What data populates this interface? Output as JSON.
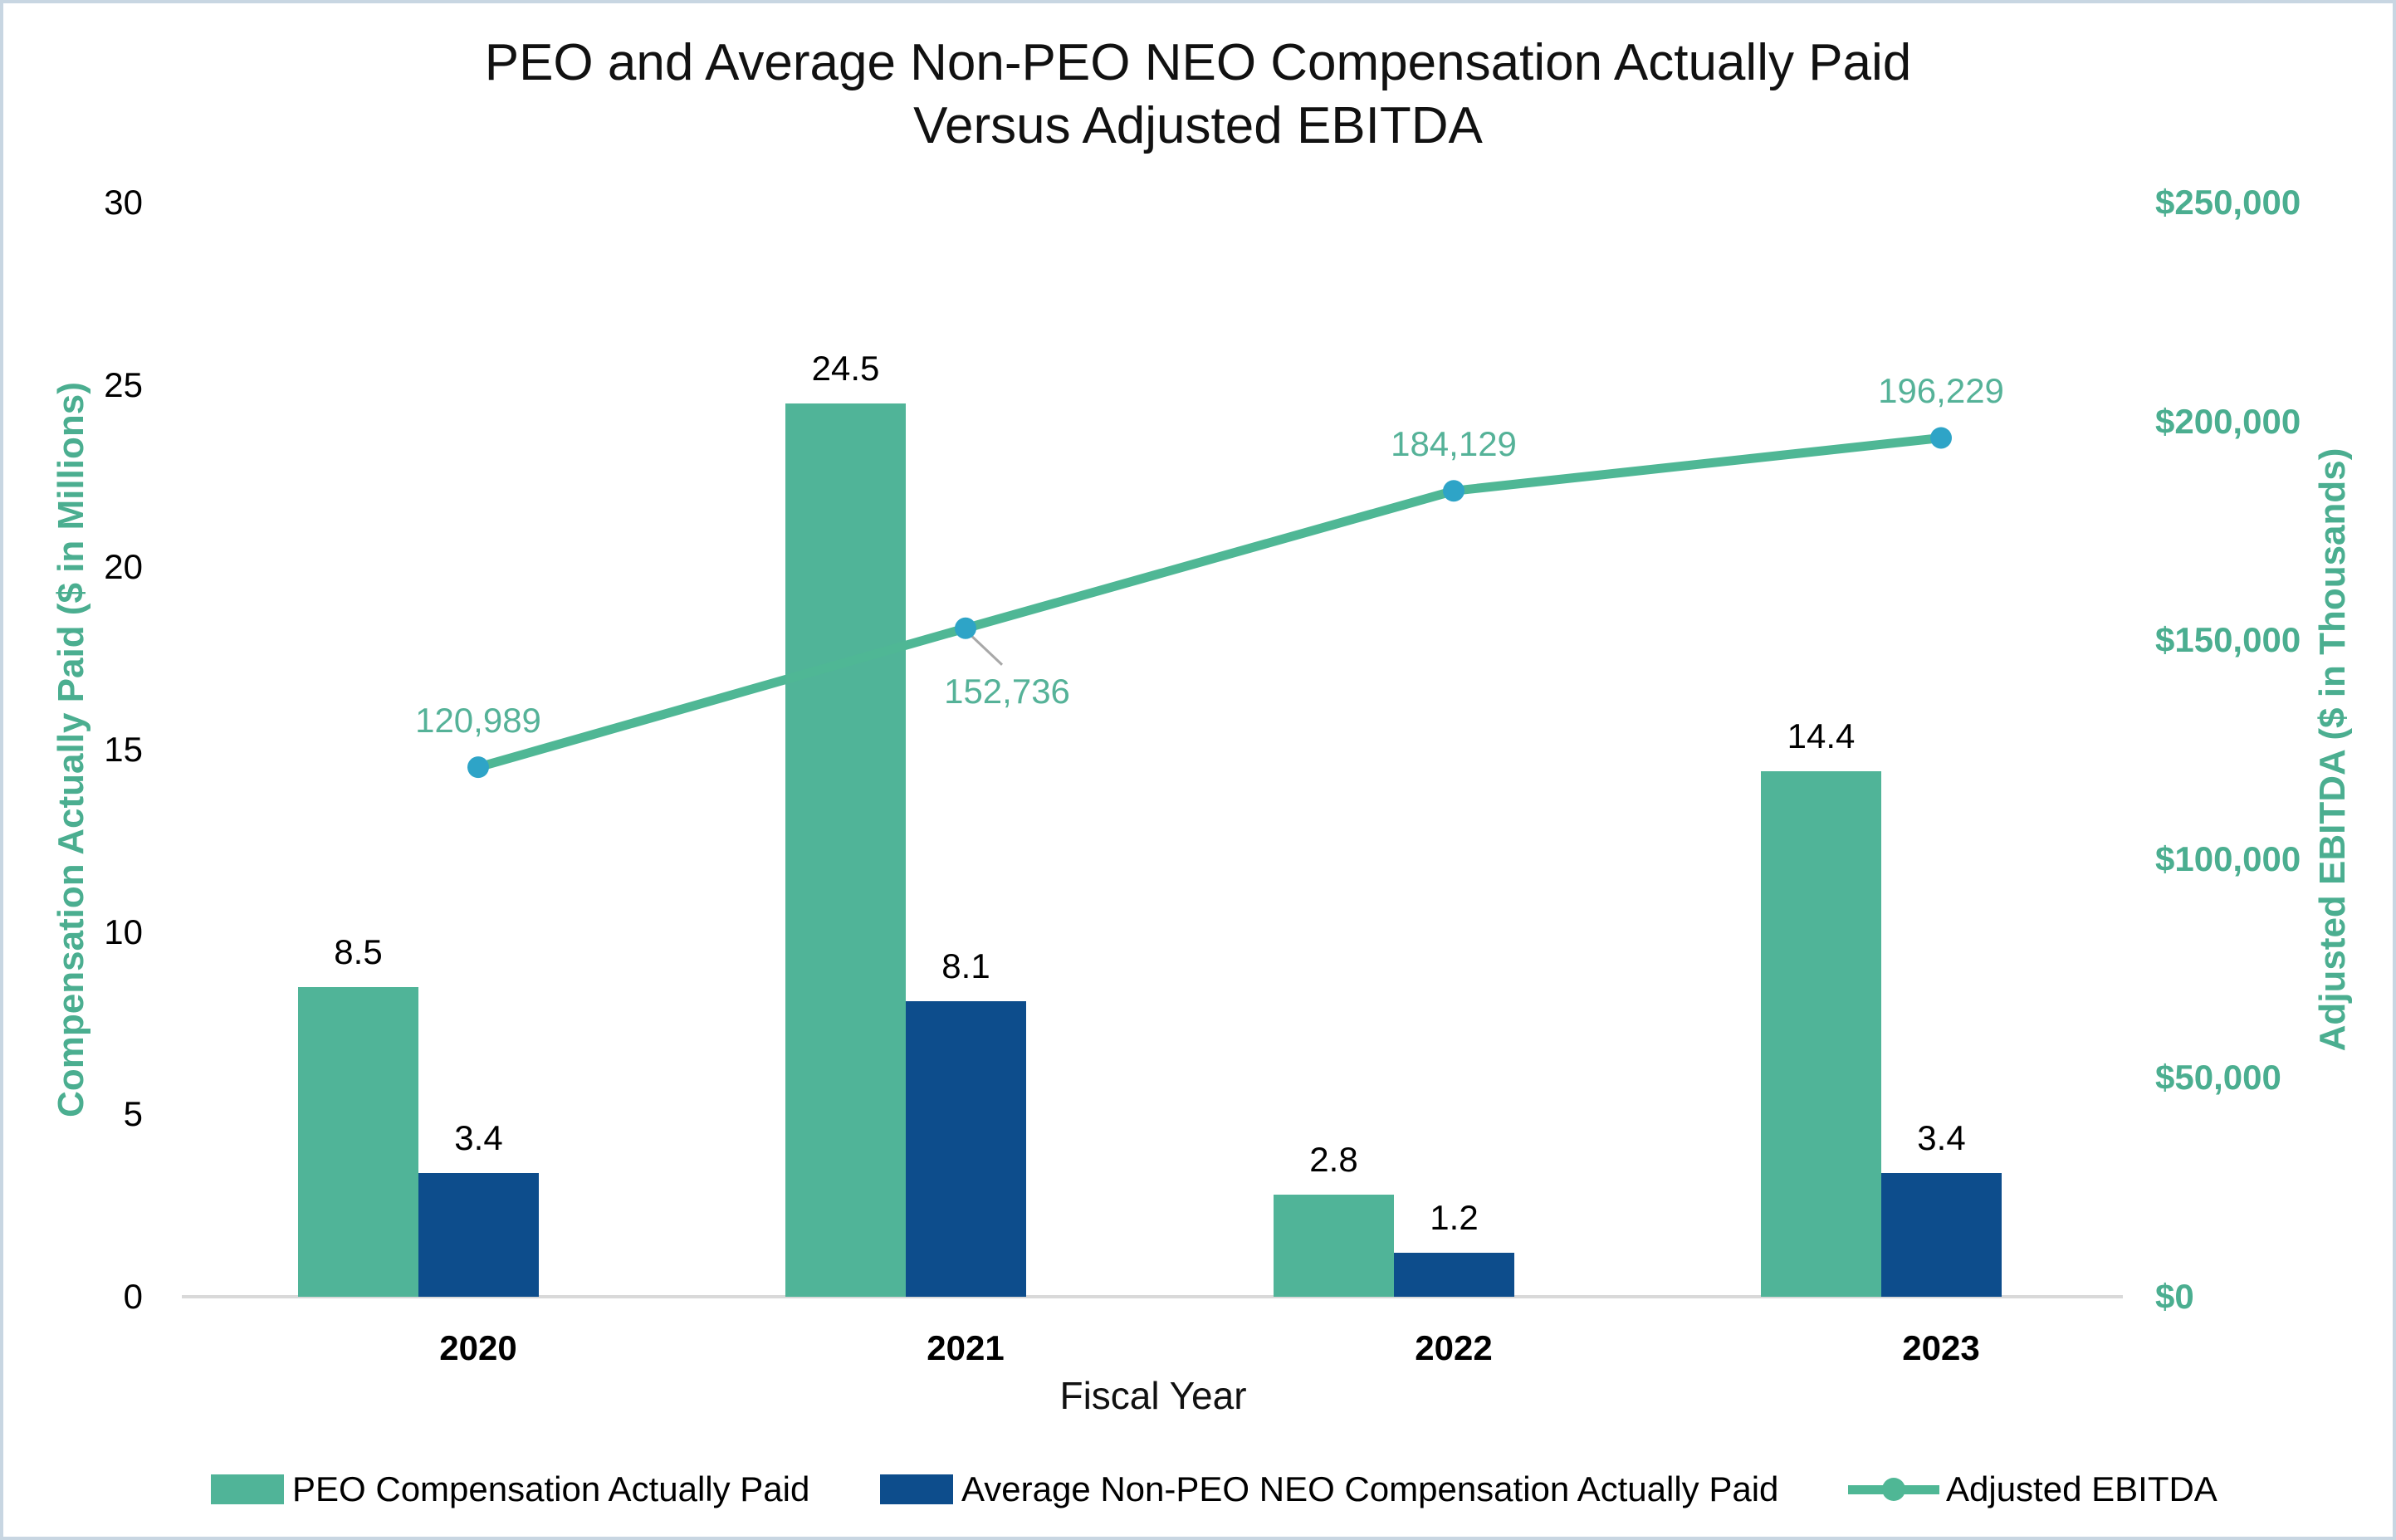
{
  "title": {
    "line1": "PEO and Average Non-PEO NEO Compensation Actually Paid",
    "line2": "Versus Adjusted EBITDA"
  },
  "chart_data": {
    "type": "bar+line combo",
    "categories": [
      "2020",
      "2021",
      "2022",
      "2023"
    ],
    "series": [
      {
        "name": "PEO Compensation Actually Paid",
        "type": "bar",
        "axis": "left",
        "color": "#50b498",
        "values": [
          8.5,
          24.5,
          2.8,
          14.4
        ],
        "labels": [
          "8.5",
          "24.5",
          "2.8",
          "14.4"
        ]
      },
      {
        "name": "Average Non-PEO NEO Compensation Actually Paid",
        "type": "bar",
        "axis": "left",
        "color": "#0d4d8c",
        "values": [
          3.4,
          8.1,
          1.2,
          3.4
        ],
        "labels": [
          "3.4",
          "8.1",
          "1.2",
          "3.4"
        ]
      },
      {
        "name": "Adjusted EBITDA",
        "type": "line",
        "axis": "right",
        "color": "#4fb795",
        "marker_color": "#2ea4c7",
        "values": [
          120989,
          152736,
          184129,
          196229
        ],
        "labels": [
          "120,989",
          "152,736",
          "184,129",
          "196,229"
        ]
      }
    ],
    "x_axis": {
      "title": "Fiscal Year"
    },
    "left_axis": {
      "title": "Compensation Actually Paid ($ in Millions)",
      "min": 0,
      "max": 30,
      "step": 5,
      "tick_labels": [
        "0",
        "5",
        "10",
        "15",
        "20",
        "25",
        "30"
      ]
    },
    "right_axis": {
      "title": "Adjusted EBITDA ($ in Thousands)",
      "min": 0,
      "max": 250000,
      "step": 50000,
      "tick_labels": [
        "$0",
        "$50,000",
        "$100,000",
        "$150,000",
        "$200,000",
        "$250,000"
      ]
    },
    "legend_position": "bottom",
    "grid": false
  },
  "colors": {
    "teal_bar": "#50b498",
    "teal_line": "#4fb795",
    "teal_text": "#4bae90",
    "navy_bar": "#0d4d8c",
    "marker_fill": "#2ea4c7",
    "leader_line": "#a8a8a8",
    "axis_line": "#d9d9d9",
    "frame_border": "#c8d6e2"
  }
}
